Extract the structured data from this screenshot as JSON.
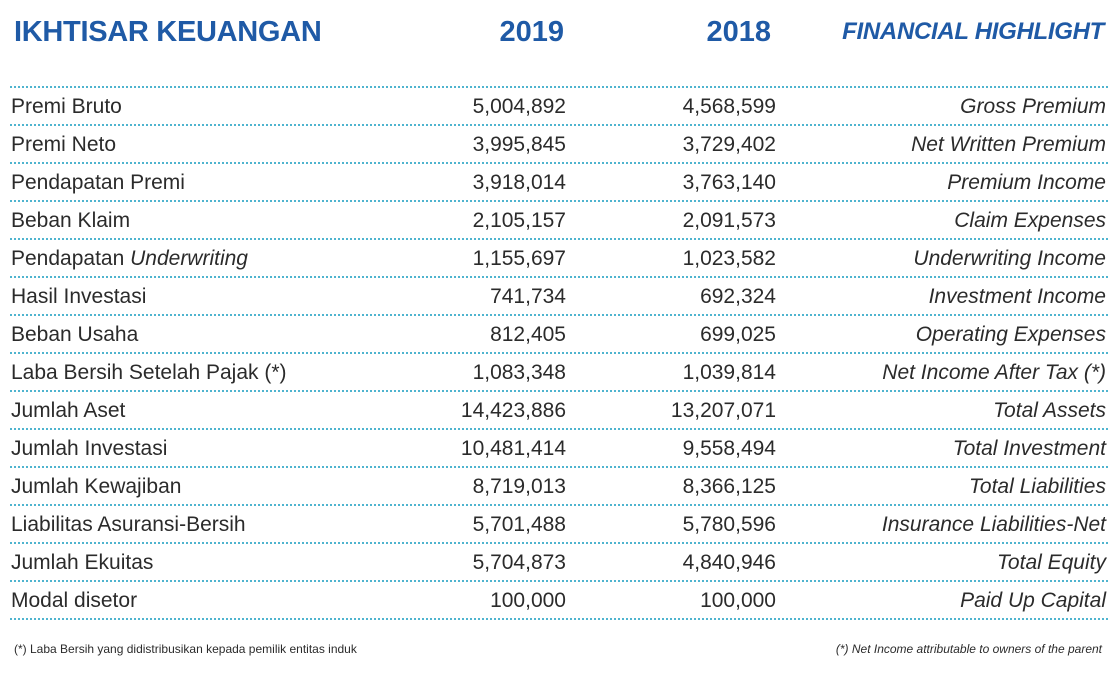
{
  "header": {
    "title_id": "IKHTISAR KEUANGAN",
    "year_1": "2019",
    "year_2": "2018",
    "title_en": "FINANCIAL HIGHLIGHT"
  },
  "rows": [
    {
      "id": "Premi Bruto",
      "v2019": "5,004,892",
      "v2018": "4,568,599",
      "en": "Gross Premium"
    },
    {
      "id": "Premi Neto",
      "v2019": "3,995,845",
      "v2018": "3,729,402",
      "en": "Net Written Premium"
    },
    {
      "id": "Pendapatan Premi",
      "v2019": "3,918,014",
      "v2018": "3,763,140",
      "en": "Premium Income"
    },
    {
      "id": "Beban Klaim",
      "v2019": "2,105,157",
      "v2018": "2,091,573",
      "en": "Claim Expenses"
    },
    {
      "id_prefix": "Pendapatan ",
      "id_italic": "Underwriting",
      "v2019": "1,155,697",
      "v2018": "1,023,582",
      "en": "Underwriting Income"
    },
    {
      "id": "Hasil Investasi",
      "v2019": "741,734",
      "v2018": "692,324",
      "en": "Investment Income"
    },
    {
      "id": "Beban Usaha",
      "v2019": "812,405",
      "v2018": "699,025",
      "en": "Operating Expenses"
    },
    {
      "id": "Laba Bersih Setelah Pajak (*)",
      "v2019": "1,083,348",
      "v2018": "1,039,814",
      "en": "Net Income After Tax (*)"
    },
    {
      "id": "Jumlah Aset",
      "v2019": "14,423,886",
      "v2018": "13,207,071",
      "en": "Total Assets"
    },
    {
      "id": "Jumlah Investasi",
      "v2019": "10,481,414",
      "v2018": "9,558,494",
      "en": "Total Investment"
    },
    {
      "id": "Jumlah Kewajiban",
      "v2019": "8,719,013",
      "v2018": "8,366,125",
      "en": "Total Liabilities"
    },
    {
      "id": "Liabilitas Asuransi-Bersih",
      "v2019": "5,701,488",
      "v2018": "5,780,596",
      "en": "Insurance Liabilities-Net"
    },
    {
      "id": "Jumlah Ekuitas",
      "v2019": "5,704,873",
      "v2018": "4,840,946",
      "en": "Total Equity"
    },
    {
      "id": "Modal disetor",
      "v2019": "100,000",
      "v2018": "100,000",
      "en": "Paid Up Capital"
    }
  ],
  "footer": {
    "note_id": "(*)  Laba Bersih yang didistribusikan kepada pemilik entitas induk",
    "note_en": "(*) Net Income attributable to owners of the parent"
  },
  "colors": {
    "heading": "#1f5aa6",
    "divider": "#4fb4cf",
    "text": "#2b2b2b"
  }
}
